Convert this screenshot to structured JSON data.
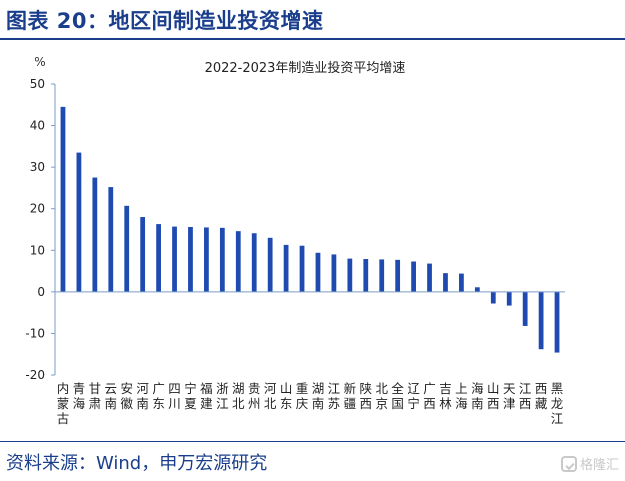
{
  "header": {
    "title": "图表 20：地区间制造业投资增速"
  },
  "footer": {
    "source": "资料来源：Wind，申万宏源研究"
  },
  "watermark": {
    "text": "格隆汇",
    "icon": "gelonghui-logo-icon"
  },
  "colors": {
    "brand": "#1a3e8c",
    "bar": "#1f4bb0",
    "axis": "#7a9cc8"
  },
  "chart_data": {
    "type": "bar",
    "title": "2022-2023年制造业投资平均增速",
    "ylabel": "%",
    "xlabel": "",
    "ylim": [
      -20,
      50
    ],
    "yticks": [
      -20,
      -10,
      0,
      10,
      20,
      30,
      40,
      50
    ],
    "grid": false,
    "legend": "none",
    "categories": [
      "内蒙古",
      "青海",
      "甘肃",
      "云南",
      "安徽",
      "河南",
      "广东",
      "四川",
      "宁夏",
      "福建",
      "浙江",
      "湖北",
      "贵州",
      "河北",
      "山东",
      "重庆",
      "湖南",
      "江苏",
      "新疆",
      "陕西",
      "北京",
      "全国",
      "辽宁",
      "广西",
      "吉林",
      "上海",
      "海南",
      "山西",
      "天津",
      "江西",
      "西藏",
      "黑龙江"
    ],
    "values": [
      44.5,
      33.5,
      27.5,
      25.2,
      20.7,
      18.0,
      16.3,
      15.7,
      15.6,
      15.5,
      15.4,
      14.6,
      14.1,
      13.0,
      11.3,
      11.1,
      9.4,
      9.0,
      8.0,
      7.9,
      7.8,
      7.7,
      7.3,
      6.8,
      4.5,
      4.4,
      1.1,
      -2.8,
      -3.3,
      -8.2,
      -13.8,
      -14.6
    ]
  }
}
